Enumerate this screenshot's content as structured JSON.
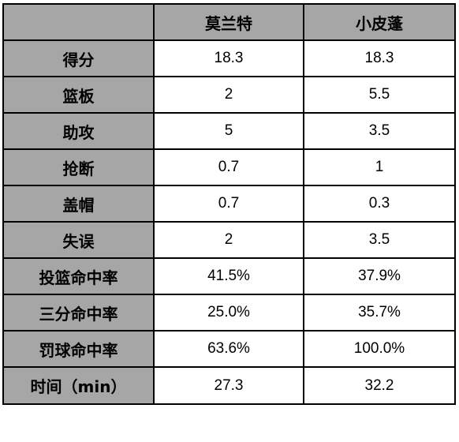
{
  "table": {
    "corner": "",
    "columns": [
      "莫兰特",
      "小皮蓬"
    ],
    "rows": [
      {
        "label": "得分",
        "values": [
          "18.3",
          "18.3"
        ]
      },
      {
        "label": "篮板",
        "values": [
          "2",
          "5.5"
        ]
      },
      {
        "label": "助攻",
        "values": [
          "5",
          "3.5"
        ]
      },
      {
        "label": "抢断",
        "values": [
          "0.7",
          "1"
        ]
      },
      {
        "label": "盖帽",
        "values": [
          "0.7",
          "0.3"
        ]
      },
      {
        "label": "失误",
        "values": [
          "2",
          "3.5"
        ]
      },
      {
        "label": "投篮命中率",
        "values": [
          "41.5%",
          "37.9%"
        ]
      },
      {
        "label": "三分命中率",
        "values": [
          "25.0%",
          "35.7%"
        ]
      },
      {
        "label": "罚球命中率",
        "values": [
          "63.6%",
          "100.0%"
        ]
      },
      {
        "label": "时间（min）",
        "values": [
          "27.3",
          "32.2"
        ]
      }
    ]
  },
  "colors": {
    "header_bg": "#a6a6a6",
    "cell_bg": "#ffffff",
    "border": "#000000"
  }
}
